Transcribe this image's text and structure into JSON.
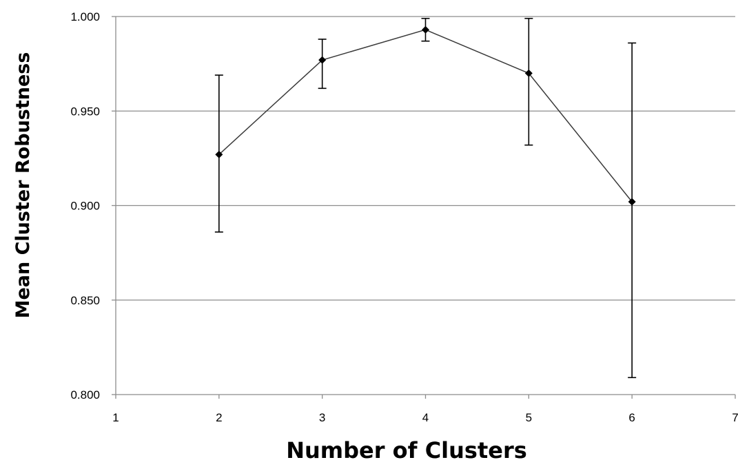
{
  "chart_data": {
    "type": "line",
    "xlabel": "Number of Clusters",
    "ylabel": "Mean Cluster Robustness",
    "xlim": [
      1,
      7
    ],
    "ylim": [
      0.8,
      1.0
    ],
    "x_ticks": [
      1,
      2,
      3,
      4,
      5,
      6,
      7
    ],
    "x_tick_labels": [
      "1",
      "2",
      "3",
      "4",
      "5",
      "6",
      "7"
    ],
    "y_ticks": [
      0.8,
      0.85,
      0.9,
      0.95,
      1.0
    ],
    "y_tick_labels": [
      "0.800",
      "0.850",
      "0.900",
      "0.950",
      "1.000"
    ],
    "grid": "horizontal",
    "legend": "none",
    "colors": {
      "line": "#3a3a3a",
      "marker": "#000000",
      "grid": "#8c8c8c",
      "axis": "#8c8c8c"
    },
    "series": [
      {
        "x": [
          2,
          3,
          4,
          5,
          6
        ],
        "y": [
          0.927,
          0.977,
          0.993,
          0.97,
          0.902
        ],
        "error_low": [
          0.886,
          0.962,
          0.987,
          0.932,
          0.809
        ],
        "error_high": [
          0.969,
          0.988,
          0.999,
          0.999,
          0.986
        ]
      }
    ]
  }
}
